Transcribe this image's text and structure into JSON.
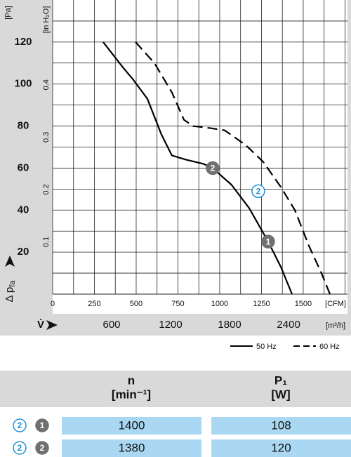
{
  "chart_data": {
    "type": "line",
    "y_label": "Δ p",
    "y_label_sub": "fa",
    "y_unit": "[Pa]",
    "y2_unit": "[in H₂O]",
    "x_label": "V̇",
    "x_unit": "[CFM]",
    "x2_unit": "[m³/h]",
    "xlim": [
      0,
      1765
    ],
    "xticks": [
      0,
      250,
      500,
      750,
      1000,
      1250,
      1500
    ],
    "xgrid": [
      0,
      125,
      250,
      375,
      500,
      625,
      750,
      875,
      1000,
      1125,
      1250,
      1375,
      1500,
      1625,
      1750
    ],
    "x2lim": [
      0,
      2999
    ],
    "x2ticks": [
      600,
      1200,
      1800,
      2400
    ],
    "ylim": [
      0,
      140
    ],
    "yticks": [
      20,
      40,
      60,
      80,
      100,
      120
    ],
    "ygrid": [
      10,
      20,
      30,
      40,
      50,
      60,
      70,
      80,
      90,
      100,
      110,
      120,
      130
    ],
    "y2lim": [
      0,
      0.562
    ],
    "y2ticks": [
      0.1,
      0.2,
      0.3,
      0.4
    ],
    "series": [
      {
        "name": "50 Hz",
        "color": "#000000",
        "dashed": false,
        "x": [
          302,
          420,
          483,
          567,
          651,
          714,
          798,
          903,
          958,
          1071,
          1176,
          1290,
          1366,
          1433
        ],
        "values": [
          120,
          108,
          102,
          93,
          76,
          66,
          64,
          62,
          60,
          52,
          41,
          25,
          13,
          0
        ]
      },
      {
        "name": "60 Hz",
        "color": "#000000",
        "dashed": true,
        "x": [
          496,
          609,
          714,
          786,
          840,
          945,
          1029,
          1155,
          1260,
          1366,
          1450,
          1534,
          1609,
          1660
        ],
        "values": [
          120,
          110,
          96,
          83,
          80,
          79,
          78,
          71,
          63,
          51,
          40,
          23,
          10,
          0
        ]
      }
    ],
    "annotations": [
      {
        "label": "2",
        "x": 958,
        "y": 60,
        "style": "filled"
      },
      {
        "label": "1",
        "x": 1290,
        "y": 25,
        "style": "filled"
      },
      {
        "label": "2",
        "x": 1231,
        "y": 49,
        "style": "outline"
      }
    ]
  },
  "table": {
    "header": [
      [
        "n",
        "[min⁻¹]"
      ],
      [
        "P₁",
        "[W]"
      ]
    ],
    "rows": [
      {
        "icons": [
          "2",
          "1"
        ],
        "cells": [
          "1400",
          "108"
        ]
      },
      {
        "icons": [
          "2",
          "2"
        ],
        "cells": [
          "1380",
          "120"
        ]
      }
    ]
  }
}
